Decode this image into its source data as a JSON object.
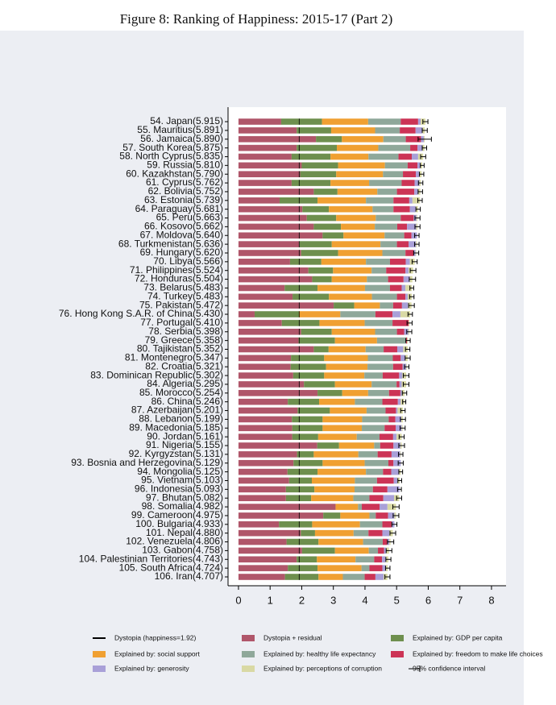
{
  "chart_data": {
    "type": "stacked-barh",
    "title": "Figure 8: Ranking of Happiness: 2015-17 (Part 2)",
    "categories": [
      "54. Japan(5.915)",
      "55. Mauritius(5.891)",
      "56. Jamaica(5.890)",
      "57. South Korea(5.875)",
      "58. North Cyprus(5.835)",
      "59. Russia(5.810)",
      "60. Kazakhstan(5.790)",
      "61. Cyprus(5.762)",
      "62. Bolivia(5.752)",
      "63. Estonia(5.739)",
      "64. Paraguay(5.681)",
      "65. Peru(5.663)",
      "66. Kosovo(5.662)",
      "67. Moldova(5.640)",
      "68. Turkmenistan(5.636)",
      "69. Hungary(5.620)",
      "70. Libya(5.566)",
      "71. Philippines(5.524)",
      "72. Honduras(5.504)",
      "73. Belarus(5.483)",
      "74. Turkey(5.483)",
      "75. Pakistan(5.472)",
      "76. Hong Kong S.A.R. of China(5.430)",
      "77. Portugal(5.410)",
      "78. Serbia(5.398)",
      "79. Greece(5.358)",
      "80. Tajikistan(5.352)",
      "81. Montenegro(5.347)",
      "82. Croatia(5.321)",
      "83. Dominican Republic(5.302)",
      "84. Algeria(5.295)",
      "85. Morocco(5.254)",
      "86. China(5.246)",
      "87. Azerbaijan(5.201)",
      "88. Lebanon(5.199)",
      "89. Macedonia(5.185)",
      "90. Jordan(5.161)",
      "91. Nigeria(5.155)",
      "92. Kyrgyzstan(5.131)",
      "93. Bosnia and Herzegovina(5.129)",
      "94. Mongolia(5.125)",
      "95. Vietnam(5.103)",
      "96. Indonesia(5.093)",
      "97. Bhutan(5.082)",
      "98. Somalia(4.982)",
      "99. Cameroon(4.975)",
      "100. Bulgaria(4.933)",
      "101. Nepal(4.880)",
      "102. Venezuela(4.806)",
      "103. Gabon(4.758)",
      "104. Palestinian Territories(4.743)",
      "105. South Africa(4.724)",
      "106. Iran(4.707)"
    ],
    "series": [
      {
        "name": "Dystopia + residual",
        "color": "#b0566a",
        "values": [
          1.35,
          1.84,
          2.45,
          1.84,
          1.68,
          2.0,
          1.95,
          1.68,
          2.38,
          1.3,
          2.02,
          2.16,
          2.38,
          2.66,
          1.93,
          1.98,
          1.63,
          2.21,
          2.33,
          1.46,
          1.71,
          3.01,
          0.51,
          1.37,
          1.98,
          1.9,
          2.38,
          1.66,
          1.65,
          1.73,
          2.07,
          2.5,
          1.56,
          1.87,
          1.69,
          1.7,
          1.7,
          2.49,
          1.85,
          1.74,
          1.55,
          1.6,
          1.5,
          1.5,
          3.07,
          2.68,
          1.28,
          1.97,
          1.52,
          2.01,
          1.84,
          1.56,
          1.47
        ]
      },
      {
        "name": "Explained by: GDP per capita",
        "color": "#6e8f4e",
        "values": [
          1.29,
          1.09,
          0.82,
          1.27,
          1.23,
          1.15,
          1.14,
          1.23,
          0.75,
          1.2,
          0.84,
          0.93,
          0.86,
          0.66,
          1.02,
          1.17,
          0.99,
          0.78,
          0.62,
          1.04,
          1.15,
          0.65,
          1.41,
          1.19,
          0.97,
          1.15,
          0.47,
          1.05,
          1.12,
          0.98,
          0.98,
          0.78,
          0.99,
          1.02,
          0.97,
          0.96,
          0.82,
          0.69,
          0.53,
          0.92,
          0.95,
          0.72,
          0.9,
          0.8,
          0.0,
          0.54,
          1.05,
          0.45,
          1.01,
          1.04,
          0.64,
          0.94,
          1.06
        ]
      },
      {
        "name": "Explained by: social support",
        "color": "#f0a032",
        "values": [
          1.46,
          1.39,
          1.31,
          1.31,
          1.2,
          1.48,
          1.48,
          1.22,
          1.26,
          1.53,
          1.38,
          1.25,
          1.07,
          1.3,
          1.54,
          1.4,
          1.41,
          1.22,
          1.11,
          1.5,
          1.36,
          0.81,
          1.3,
          1.43,
          1.37,
          1.33,
          1.17,
          1.38,
          1.31,
          1.27,
          1.16,
          0.82,
          1.13,
          1.16,
          1.25,
          1.24,
          1.22,
          1.11,
          1.41,
          1.33,
          1.53,
          1.36,
          1.27,
          1.33,
          0.71,
          0.92,
          1.51,
          1.22,
          1.41,
          1.07,
          1.22,
          1.39,
          0.77
        ]
      },
      {
        "name": "Explained by: healthy life expectancy",
        "color": "#8fa89a",
        "values": [
          1.03,
          0.78,
          0.71,
          1.01,
          0.95,
          0.72,
          0.63,
          1.03,
          0.62,
          0.87,
          0.66,
          0.79,
          0.71,
          0.62,
          0.52,
          0.73,
          0.76,
          0.46,
          0.67,
          0.79,
          0.79,
          0.42,
          1.11,
          0.88,
          0.69,
          0.92,
          0.57,
          0.79,
          0.81,
          0.58,
          0.79,
          0.66,
          0.87,
          0.6,
          0.84,
          0.72,
          0.72,
          0.19,
          0.61,
          0.75,
          0.54,
          0.7,
          0.58,
          0.51,
          0.12,
          0.2,
          0.71,
          0.47,
          0.62,
          0.29,
          0.59,
          0.25,
          0.69
        ]
      },
      {
        "name": "Explained by: freedom to make life choices",
        "color": "#cc3456",
        "values": [
          0.55,
          0.5,
          0.48,
          0.23,
          0.42,
          0.31,
          0.41,
          0.41,
          0.55,
          0.5,
          0.52,
          0.41,
          0.31,
          0.23,
          0.37,
          0.26,
          0.5,
          0.61,
          0.49,
          0.37,
          0.27,
          0.28,
          0.54,
          0.51,
          0.23,
          0.03,
          0.43,
          0.25,
          0.3,
          0.52,
          0.09,
          0.36,
          0.49,
          0.33,
          0.21,
          0.35,
          0.43,
          0.42,
          0.44,
          0.16,
          0.26,
          0.53,
          0.46,
          0.44,
          0.56,
          0.39,
          0.29,
          0.44,
          0.14,
          0.19,
          0.25,
          0.41,
          0.34
        ]
      },
      {
        "name": "Explained by: generosity",
        "color": "#a9a0d8",
        "values": [
          0.08,
          0.22,
          0.09,
          0.16,
          0.2,
          0.1,
          0.11,
          0.15,
          0.11,
          0.1,
          0.18,
          0.09,
          0.29,
          0.17,
          0.23,
          0.06,
          0.13,
          0.1,
          0.2,
          0.12,
          0.07,
          0.19,
          0.25,
          0.0,
          0.13,
          0.0,
          0.19,
          0.14,
          0.11,
          0.1,
          0.07,
          0.04,
          0.09,
          0.05,
          0.19,
          0.19,
          0.11,
          0.22,
          0.27,
          0.23,
          0.25,
          0.11,
          0.38,
          0.34,
          0.25,
          0.2,
          0.09,
          0.22,
          0.07,
          0.07,
          0.11,
          0.11,
          0.26
        ]
      },
      {
        "name": "Explained by: perceptions of corruption",
        "color": "#d9d9a4",
        "values": [
          0.15,
          0.07,
          0.03,
          0.06,
          0.16,
          0.05,
          0.07,
          0.04,
          0.08,
          0.24,
          0.08,
          0.03,
          0.04,
          0.0,
          0.03,
          0.02,
          0.15,
          0.14,
          0.08,
          0.2,
          0.13,
          0.11,
          0.31,
          0.03,
          0.03,
          0.03,
          0.14,
          0.08,
          0.02,
          0.12,
          0.14,
          0.09,
          0.11,
          0.17,
          0.05,
          0.03,
          0.16,
          0.04,
          0.02,
          0.0,
          0.05,
          0.08,
          0.0,
          0.16,
          0.27,
          0.05,
          0.0,
          0.11,
          0.04,
          0.09,
          0.09,
          0.06,
          0.12
        ]
      }
    ],
    "errors": [
      0.08,
      0.08,
      0.21,
      0.07,
      0.08,
      0.06,
      0.07,
      0.07,
      0.07,
      0.07,
      0.07,
      0.08,
      0.08,
      0.07,
      0.07,
      0.08,
      0.08,
      0.09,
      0.1,
      0.06,
      0.07,
      0.09,
      0.07,
      0.08,
      0.08,
      0.07,
      0.07,
      0.08,
      0.07,
      0.09,
      0.09,
      0.07,
      0.05,
      0.07,
      0.08,
      0.08,
      0.08,
      0.09,
      0.07,
      0.08,
      0.06,
      0.06,
      0.06,
      0.08,
      0.1,
      0.09,
      0.08,
      0.09,
      0.1,
      0.09,
      0.08,
      0.07,
      0.08
    ],
    "ci_label": "95% confidence interval",
    "dystopia_line": {
      "name": "Dystopia (happiness=1.92)",
      "value": 1.92
    },
    "xlim": [
      -0.33,
      8.46
    ],
    "xticks": [
      0,
      1,
      2,
      3,
      4,
      5,
      6,
      7,
      8
    ]
  }
}
